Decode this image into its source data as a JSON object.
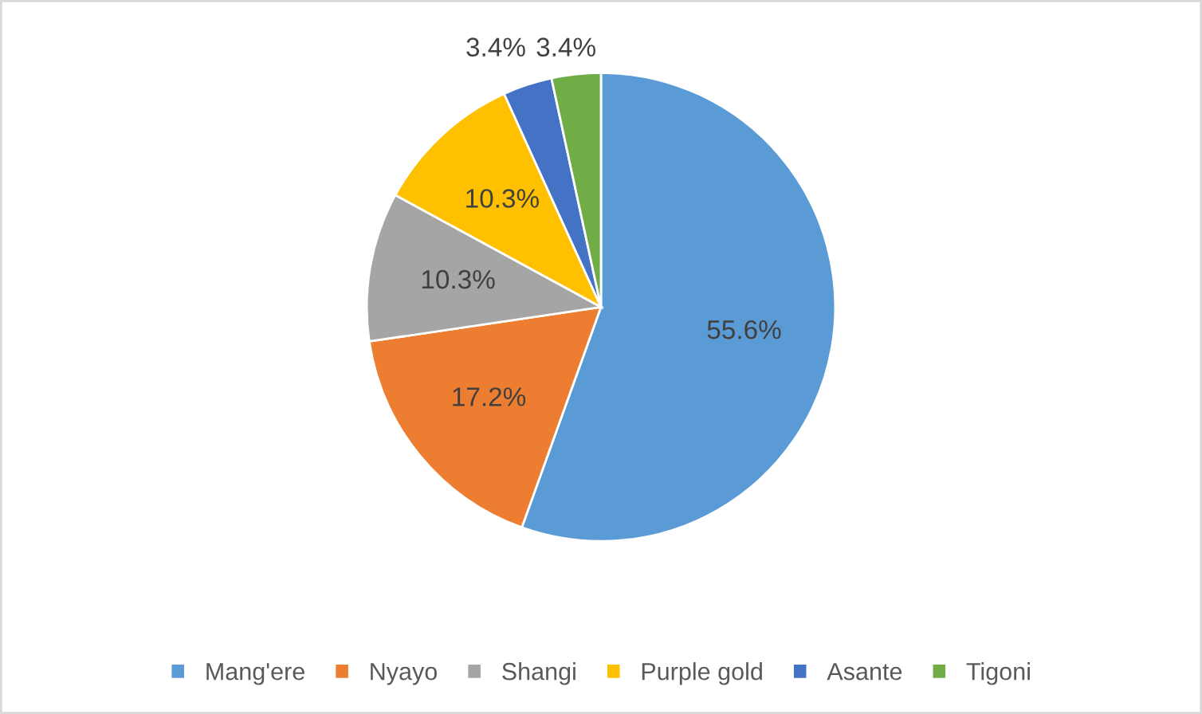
{
  "chart_data": {
    "type": "pie",
    "categories": [
      "Mang'ere",
      "Nyayo",
      "Shangi",
      "Purple gold",
      "Asante",
      "Tigoni"
    ],
    "values": [
      55.6,
      17.2,
      10.3,
      10.3,
      3.4,
      3.4
    ],
    "value_labels": [
      "55.6%",
      "17.2%",
      "10.3%",
      "10.3%",
      "3.4%",
      "3.4%"
    ],
    "colors": [
      "#5b9bd5",
      "#ed7d31",
      "#a5a5a5",
      "#ffc000",
      "#4472c4",
      "#70ad47"
    ],
    "legend": "bottom"
  }
}
